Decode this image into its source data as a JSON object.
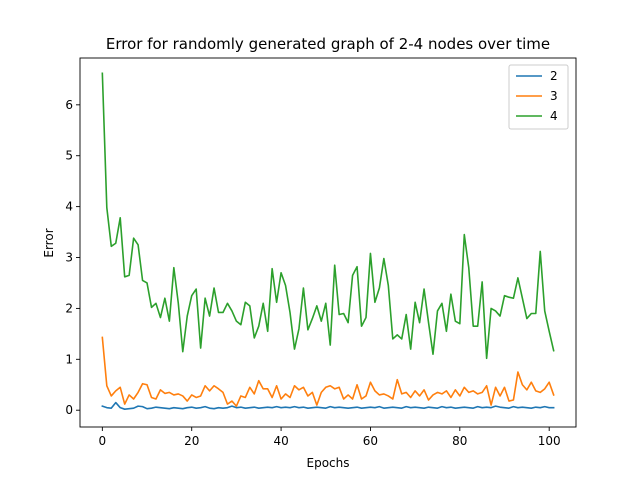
{
  "chart_data": {
    "type": "line",
    "title": "Error for randomly generated graph of 2-4 nodes over time",
    "xlabel": "Epochs",
    "ylabel": "Error",
    "xlim": [
      -5,
      106
    ],
    "ylim": [
      -0.33,
      6.92
    ],
    "xticks": [
      0,
      20,
      40,
      60,
      80,
      100
    ],
    "yticks": [
      0,
      1,
      2,
      3,
      4,
      5,
      6
    ],
    "grid": false,
    "legend_position": "top-right",
    "series": [
      {
        "name": "2",
        "color": "#1f77b4",
        "values": [
          0.08,
          0.05,
          0.04,
          0.15,
          0.05,
          0.02,
          0.03,
          0.04,
          0.08,
          0.07,
          0.03,
          0.04,
          0.06,
          0.05,
          0.04,
          0.03,
          0.05,
          0.04,
          0.03,
          0.05,
          0.06,
          0.04,
          0.05,
          0.07,
          0.04,
          0.03,
          0.05,
          0.04,
          0.05,
          0.08,
          0.05,
          0.06,
          0.04,
          0.05,
          0.06,
          0.04,
          0.05,
          0.06,
          0.05,
          0.07,
          0.05,
          0.06,
          0.05,
          0.07,
          0.05,
          0.06,
          0.04,
          0.05,
          0.06,
          0.05,
          0.04,
          0.07,
          0.05,
          0.06,
          0.05,
          0.04,
          0.05,
          0.06,
          0.04,
          0.05,
          0.06,
          0.05,
          0.07,
          0.04,
          0.05,
          0.06,
          0.05,
          0.04,
          0.07,
          0.05,
          0.06,
          0.05,
          0.04,
          0.06,
          0.05,
          0.04,
          0.07,
          0.05,
          0.06,
          0.04,
          0.05,
          0.06,
          0.05,
          0.04,
          0.07,
          0.05,
          0.06,
          0.05,
          0.08,
          0.06,
          0.05,
          0.04,
          0.07,
          0.05,
          0.06,
          0.05,
          0.04,
          0.06,
          0.05,
          0.07,
          0.05,
          0.05
        ]
      },
      {
        "name": "3",
        "color": "#ff7f0e",
        "values": [
          1.43,
          0.48,
          0.28,
          0.38,
          0.45,
          0.12,
          0.3,
          0.22,
          0.35,
          0.52,
          0.5,
          0.25,
          0.22,
          0.4,
          0.33,
          0.35,
          0.3,
          0.32,
          0.28,
          0.18,
          0.3,
          0.25,
          0.28,
          0.48,
          0.38,
          0.48,
          0.42,
          0.35,
          0.12,
          0.18,
          0.08,
          0.28,
          0.25,
          0.45,
          0.32,
          0.58,
          0.42,
          0.42,
          0.25,
          0.48,
          0.22,
          0.32,
          0.25,
          0.48,
          0.4,
          0.45,
          0.28,
          0.35,
          0.1,
          0.35,
          0.45,
          0.48,
          0.42,
          0.45,
          0.22,
          0.3,
          0.22,
          0.5,
          0.22,
          0.28,
          0.55,
          0.38,
          0.3,
          0.32,
          0.28,
          0.22,
          0.6,
          0.32,
          0.35,
          0.25,
          0.38,
          0.28,
          0.4,
          0.2,
          0.3,
          0.35,
          0.32,
          0.38,
          0.25,
          0.4,
          0.28,
          0.45,
          0.35,
          0.38,
          0.32,
          0.35,
          0.48,
          0.1,
          0.45,
          0.28,
          0.45,
          0.18,
          0.2,
          0.75,
          0.5,
          0.4,
          0.55,
          0.38,
          0.35,
          0.42,
          0.55,
          0.3
        ]
      },
      {
        "name": "4",
        "color": "#2ca02c",
        "values": [
          6.62,
          3.98,
          3.22,
          3.28,
          3.78,
          2.62,
          2.65,
          3.38,
          3.25,
          2.55,
          2.5,
          2.02,
          2.1,
          1.82,
          2.2,
          1.75,
          2.8,
          2.1,
          1.15,
          1.85,
          2.25,
          2.38,
          1.22,
          2.2,
          1.85,
          2.4,
          1.92,
          1.92,
          2.1,
          1.95,
          1.75,
          1.68,
          2.12,
          2.05,
          1.42,
          1.65,
          2.1,
          1.55,
          2.78,
          2.12,
          2.7,
          2.45,
          1.92,
          1.2,
          1.6,
          2.4,
          1.58,
          1.8,
          2.05,
          1.75,
          2.1,
          1.28,
          2.85,
          1.88,
          1.9,
          1.72,
          2.65,
          2.82,
          1.65,
          1.82,
          3.08,
          2.12,
          2.4,
          2.98,
          2.45,
          1.4,
          1.48,
          1.4,
          1.88,
          1.2,
          2.12,
          1.72,
          2.38,
          1.72,
          1.1,
          1.95,
          2.1,
          1.55,
          2.28,
          1.75,
          1.7,
          3.45,
          2.8,
          1.65,
          1.65,
          2.52,
          1.02,
          2.0,
          1.95,
          1.85,
          2.25,
          2.22,
          2.2,
          2.6,
          2.2,
          1.8,
          1.9,
          1.9,
          3.12,
          1.95,
          1.55,
          1.17
        ]
      }
    ]
  }
}
